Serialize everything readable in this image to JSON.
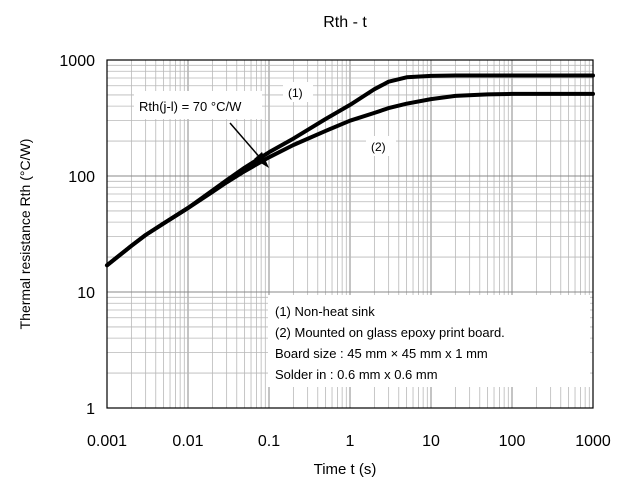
{
  "chart_data": {
    "type": "line",
    "title": "Rth - t",
    "xlabel": "Time  t (s)",
    "ylabel": "Thermal resistance  Rth  (°C/W)",
    "xscale": "log",
    "yscale": "log",
    "xlim": [
      0.001,
      1000
    ],
    "ylim": [
      1,
      1000
    ],
    "grid": true,
    "x_ticks": [
      "0.001",
      "0.01",
      "0.1",
      "1",
      "10",
      "100",
      "1000"
    ],
    "y_ticks": [
      "1",
      "10",
      "100",
      "1000"
    ],
    "series": [
      {
        "label": "(1)",
        "x": [
          0.001,
          0.002,
          0.003,
          0.005,
          0.01,
          0.02,
          0.03,
          0.05,
          0.1,
          0.2,
          0.5,
          1,
          2,
          3,
          5,
          10,
          20,
          50,
          100,
          1000
        ],
        "y": [
          17,
          25,
          31,
          39,
          53,
          75,
          92,
          118,
          160,
          210,
          310,
          410,
          560,
          650,
          710,
          730,
          735,
          735,
          735,
          735
        ]
      },
      {
        "label": "(2)",
        "x": [
          0.001,
          0.002,
          0.003,
          0.005,
          0.01,
          0.02,
          0.03,
          0.05,
          0.1,
          0.2,
          0.5,
          1,
          2,
          3,
          5,
          10,
          20,
          50,
          100,
          1000
        ],
        "y": [
          17,
          25,
          31,
          39,
          53,
          73,
          88,
          110,
          145,
          185,
          245,
          300,
          350,
          385,
          420,
          460,
          490,
          505,
          510,
          510
        ]
      }
    ],
    "annotations": {
      "rth_label": "Rth(j-l) = 70 °C/W",
      "notes": [
        "(1) Non-heat sink",
        "(2) Mounted on glass epoxy print board.",
        "Board size : 45 mm × 45 mm x 1 mm",
        "Solder in : 0.6 mm x 0.6 mm"
      ]
    }
  }
}
